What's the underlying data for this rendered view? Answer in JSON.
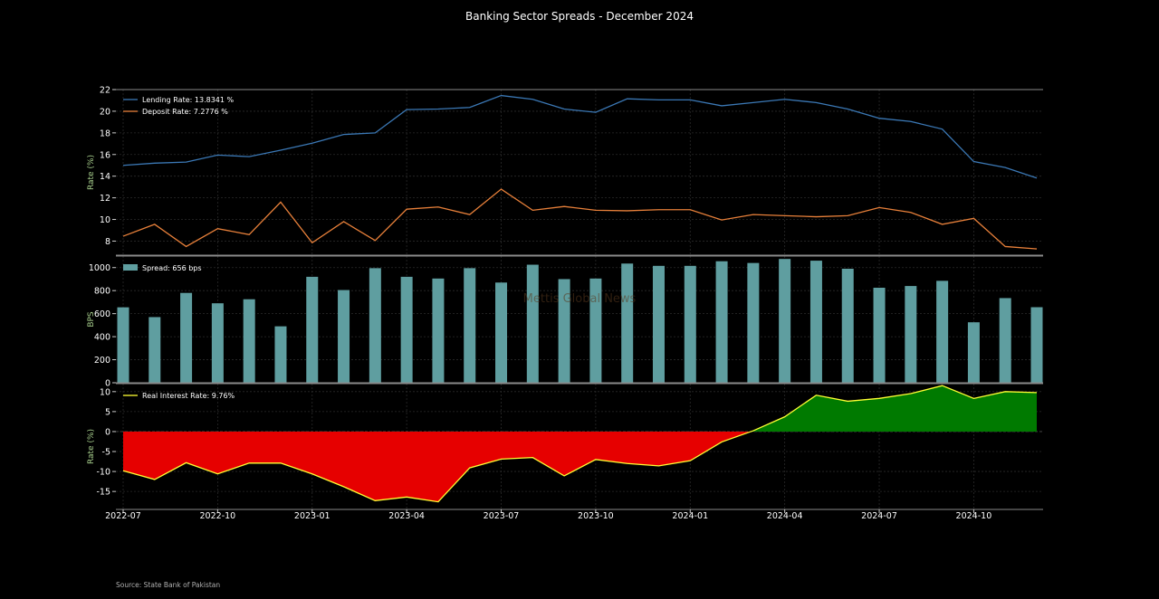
{
  "title": "Banking Sector Spreads - December 2024",
  "source": "Source: State Bank of Pakistan",
  "watermark": "Mettis Global News",
  "colors": {
    "lending": "#3b78b5",
    "deposit": "#e8803a",
    "spread_bar": "#5f9ea0",
    "real_rate_line": "#ffff33",
    "negative_fill": "#e60000",
    "positive_fill": "#007a00",
    "axis_label": "#a8d08d"
  },
  "chart_data": [
    {
      "type": "line",
      "ylabel": "Rate (%)",
      "ylim": [
        6.7,
        22
      ],
      "yticks": [
        8,
        10,
        12,
        14,
        16,
        18,
        20,
        22
      ],
      "legend_position": "top-left",
      "x": [
        "2022-07",
        "2022-08",
        "2022-09",
        "2022-10",
        "2022-11",
        "2022-12",
        "2023-01",
        "2023-02",
        "2023-03",
        "2023-04",
        "2023-05",
        "2023-06",
        "2023-07",
        "2023-08",
        "2023-09",
        "2023-10",
        "2023-11",
        "2023-12",
        "2024-01",
        "2024-02",
        "2024-03",
        "2024-04",
        "2024-05",
        "2024-06",
        "2024-07",
        "2024-08",
        "2024-09",
        "2024-10",
        "2024-11",
        "2024-12"
      ],
      "series": [
        {
          "name": "Lending Rate: 13.8341 %",
          "values": [
            15.0,
            15.2,
            15.3,
            15.95,
            15.8,
            16.4,
            17.05,
            17.85,
            18.0,
            20.15,
            20.2,
            20.35,
            21.45,
            21.1,
            20.2,
            19.9,
            21.15,
            21.05,
            21.05,
            20.5,
            20.8,
            21.1,
            20.8,
            20.2,
            19.35,
            19.05,
            18.35,
            15.35,
            14.8,
            13.83
          ]
        },
        {
          "name": "Deposit Rate: 7.2776 %",
          "values": [
            8.45,
            9.55,
            7.5,
            9.15,
            8.6,
            11.6,
            7.85,
            9.8,
            8.05,
            10.95,
            11.15,
            10.45,
            12.8,
            10.85,
            11.2,
            10.85,
            10.8,
            10.9,
            10.9,
            9.95,
            10.45,
            10.35,
            10.25,
            10.35,
            11.1,
            10.65,
            9.55,
            10.1,
            7.5,
            7.28
          ]
        }
      ]
    },
    {
      "type": "bar",
      "ylabel": "BPS",
      "ylim": [
        0,
        1100
      ],
      "yticks": [
        0,
        200,
        400,
        600,
        800,
        1000
      ],
      "legend_position": "top-left",
      "series": [
        {
          "name": "Spread: 656 bps",
          "values": [
            655,
            570,
            780,
            690,
            725,
            490,
            920,
            805,
            995,
            920,
            905,
            995,
            870,
            1025,
            900,
            905,
            1035,
            1015,
            1015,
            1055,
            1040,
            1075,
            1060,
            990,
            825,
            840,
            885,
            525,
            735,
            656
          ]
        }
      ]
    },
    {
      "type": "area",
      "ylabel": "Rate (%)",
      "ylim": [
        -19.5,
        12
      ],
      "yticks": [
        -15,
        -10,
        -5,
        0,
        5,
        10
      ],
      "legend_position": "top-left",
      "x_tick_labels": [
        "2022-07",
        "2022-10",
        "2023-01",
        "2023-04",
        "2023-07",
        "2023-10",
        "2024-01",
        "2024-04",
        "2024-07",
        "2024-10"
      ],
      "series": [
        {
          "name": "Real Interest Rate: 9.76%",
          "values": [
            -9.8,
            -12.0,
            -7.8,
            -10.6,
            -7.9,
            -7.9,
            -10.6,
            -13.8,
            -17.3,
            -16.4,
            -17.6,
            -9.1,
            -6.9,
            -6.5,
            -11.1,
            -7.0,
            -8.0,
            -8.6,
            -7.3,
            -2.6,
            0.2,
            3.7,
            9.1,
            7.6,
            8.3,
            9.5,
            11.5,
            8.3,
            10.0,
            9.76
          ]
        }
      ]
    }
  ]
}
